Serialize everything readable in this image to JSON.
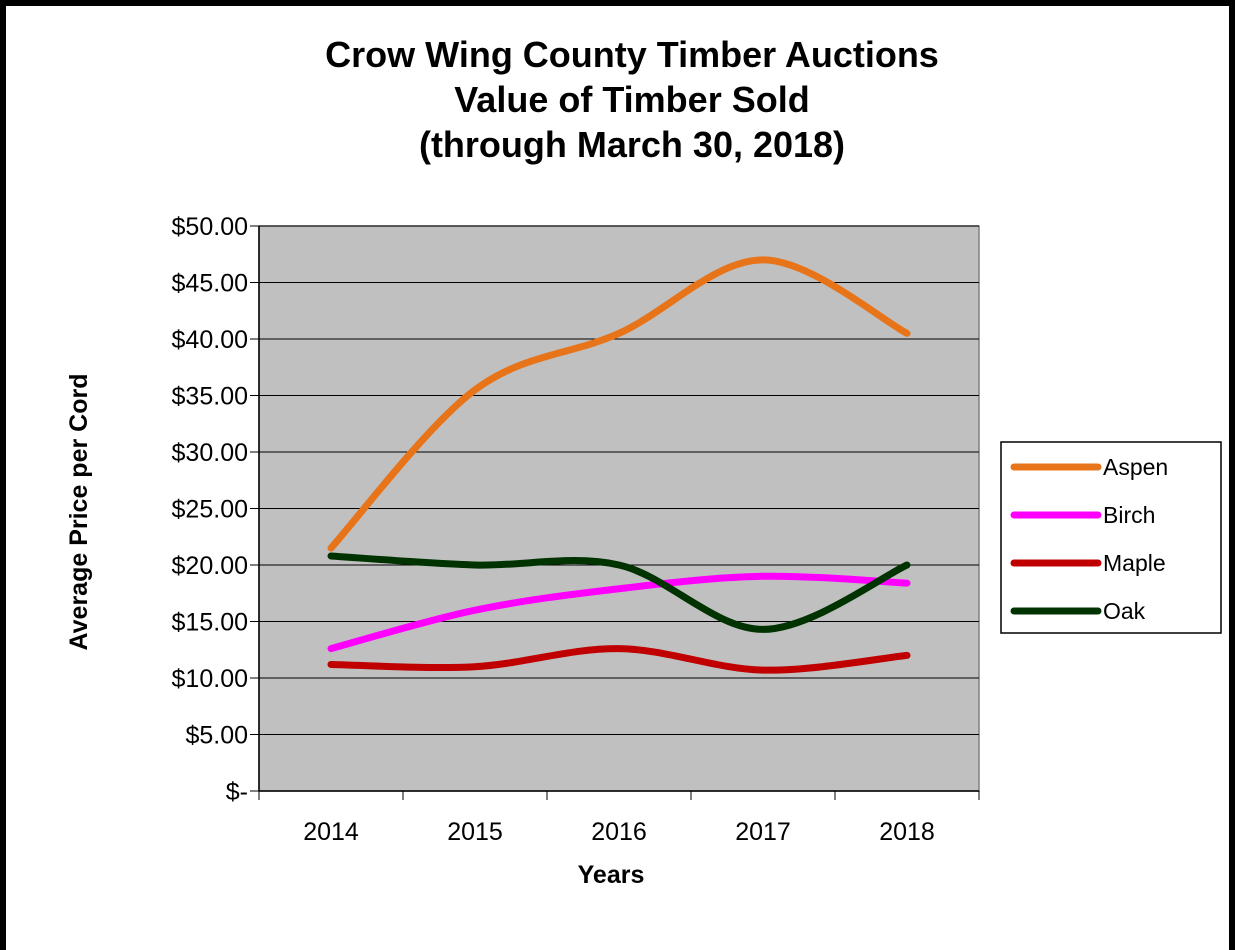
{
  "chart_data": {
    "type": "line",
    "title_lines": [
      "Crow Wing County Timber Auctions",
      "Value of Timber Sold",
      "(through March 30, 2018)"
    ],
    "xlabel": "Years",
    "ylabel": "Average Price per Cord",
    "categories": [
      "2014",
      "2015",
      "2016",
      "2017",
      "2018"
    ],
    "y_tick_labels": [
      "$-",
      "$5.00",
      "$10.00",
      "$15.00",
      "$20.00",
      "$25.00",
      "$30.00",
      "$35.00",
      "$40.00",
      "$45.00",
      "$50.00"
    ],
    "ylim": [
      0,
      50
    ],
    "grid": true,
    "smooth": true,
    "plot_background": "#c0c0c0",
    "legend_position": "right",
    "series": [
      {
        "name": "Aspen",
        "color": "#e8741a",
        "values": [
          21.5,
          35.5,
          40.5,
          47.0,
          40.5
        ]
      },
      {
        "name": "Birch",
        "color": "#ff00ff",
        "values": [
          12.6,
          16.0,
          17.9,
          19.0,
          18.4
        ]
      },
      {
        "name": "Maple",
        "color": "#c00000",
        "values": [
          11.2,
          11.0,
          12.6,
          10.7,
          12.0
        ]
      },
      {
        "name": "Oak",
        "color": "#003300",
        "values": [
          20.8,
          20.0,
          20.0,
          14.3,
          20.0
        ]
      }
    ]
  }
}
